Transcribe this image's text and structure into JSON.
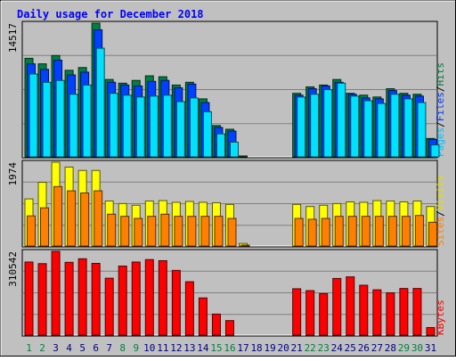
{
  "chart_data": {
    "type": "bar",
    "title": "Daily usage for December 2018",
    "categories": [
      "1",
      "2",
      "3",
      "4",
      "5",
      "6",
      "7",
      "8",
      "9",
      "10",
      "11",
      "12",
      "13",
      "14",
      "15",
      "16",
      "17",
      "18",
      "19",
      "20",
      "21",
      "22",
      "23",
      "24",
      "25",
      "26",
      "27",
      "28",
      "29",
      "30",
      "31"
    ],
    "weekend_days": [
      "1",
      "2",
      "8",
      "9",
      "15",
      "16",
      "22",
      "23",
      "29",
      "30"
    ],
    "panels": [
      {
        "id": "pages-files-hits",
        "ymax_label": "14517",
        "ylim": [
          0,
          14517
        ],
        "right_label_parts": [
          "Pages",
          "/",
          "Files",
          "/",
          "Hits"
        ],
        "series": [
          {
            "name": "Hits",
            "color": "#008040",
            "values": [
              10700,
              10100,
              11000,
              9400,
              9700,
              14517,
              8400,
              8000,
              8300,
              8800,
              8700,
              7800,
              8100,
              6300,
              3400,
              3000,
              100,
              0,
              0,
              0,
              6900,
              7600,
              7800,
              8400,
              6900,
              6700,
              6500,
              7400,
              6900,
              6800,
              2000
            ]
          },
          {
            "name": "Files",
            "color": "#0040ff",
            "values": [
              10100,
              9500,
              10500,
              8900,
              9200,
              13800,
              8100,
              7800,
              7700,
              8200,
              8300,
              7500,
              7900,
              5900,
              3200,
              2800,
              0,
              0,
              0,
              0,
              6700,
              7400,
              7700,
              8100,
              6800,
              6400,
              6300,
              7200,
              6700,
              6600,
              1900
            ]
          },
          {
            "name": "Pages",
            "color": "#00e0ff",
            "values": [
              9000,
              8100,
              8300,
              6800,
              7800,
              11800,
              6900,
              6700,
              6500,
              6600,
              6700,
              6000,
              6400,
              4900,
              2500,
              1600,
              0,
              0,
              0,
              0,
              6500,
              6800,
              7300,
              8000,
              6600,
              6100,
              5800,
              6800,
              6300,
              5900,
              1300
            ]
          }
        ]
      },
      {
        "id": "visits-sites",
        "ymax_label": "1974",
        "ylim": [
          0,
          1974
        ],
        "right_label_parts": [
          "Sites",
          "/",
          "Visits"
        ],
        "series": [
          {
            "name": "Visits",
            "color": "#ffff00",
            "values": [
              1110,
              1500,
              1974,
              1860,
              1780,
              1780,
              1060,
              1000,
              960,
              1060,
              1070,
              1030,
              1050,
              1030,
              1020,
              980,
              60,
              0,
              0,
              0,
              980,
              930,
              960,
              1000,
              1040,
              1030,
              1070,
              1060,
              1040,
              1060,
              930
            ]
          },
          {
            "name": "Sites",
            "color": "#ff8000",
            "values": [
              710,
              900,
              1400,
              1300,
              1250,
              1300,
              750,
              700,
              650,
              700,
              750,
              700,
              700,
              700,
              700,
              650,
              20,
              0,
              0,
              0,
              650,
              630,
              650,
              700,
              700,
              700,
              700,
              700,
              700,
              720,
              560
            ]
          }
        ]
      },
      {
        "id": "kbytes",
        "ymax_label": "310542",
        "ylim": [
          0,
          310542
        ],
        "right_label_parts": [
          "KBytes"
        ],
        "series": [
          {
            "name": "KBytes",
            "color": "#ff0000",
            "values": [
              271000,
              265000,
              310542,
              270000,
              283000,
              266000,
              211000,
              256000,
              271000,
              280000,
              276000,
              240000,
              198000,
              138000,
              78000,
              54000,
              0,
              0,
              0,
              0,
              172000,
              165000,
              154000,
              210000,
              216000,
              185000,
              168000,
              157000,
              173000,
              173000,
              28000
            ]
          }
        ]
      }
    ]
  },
  "colors": {
    "background": "#c0c0c0",
    "title": "#0000ff",
    "weekday_label": "#000080",
    "weekend_label": "#008040",
    "gridline": "#808080"
  }
}
